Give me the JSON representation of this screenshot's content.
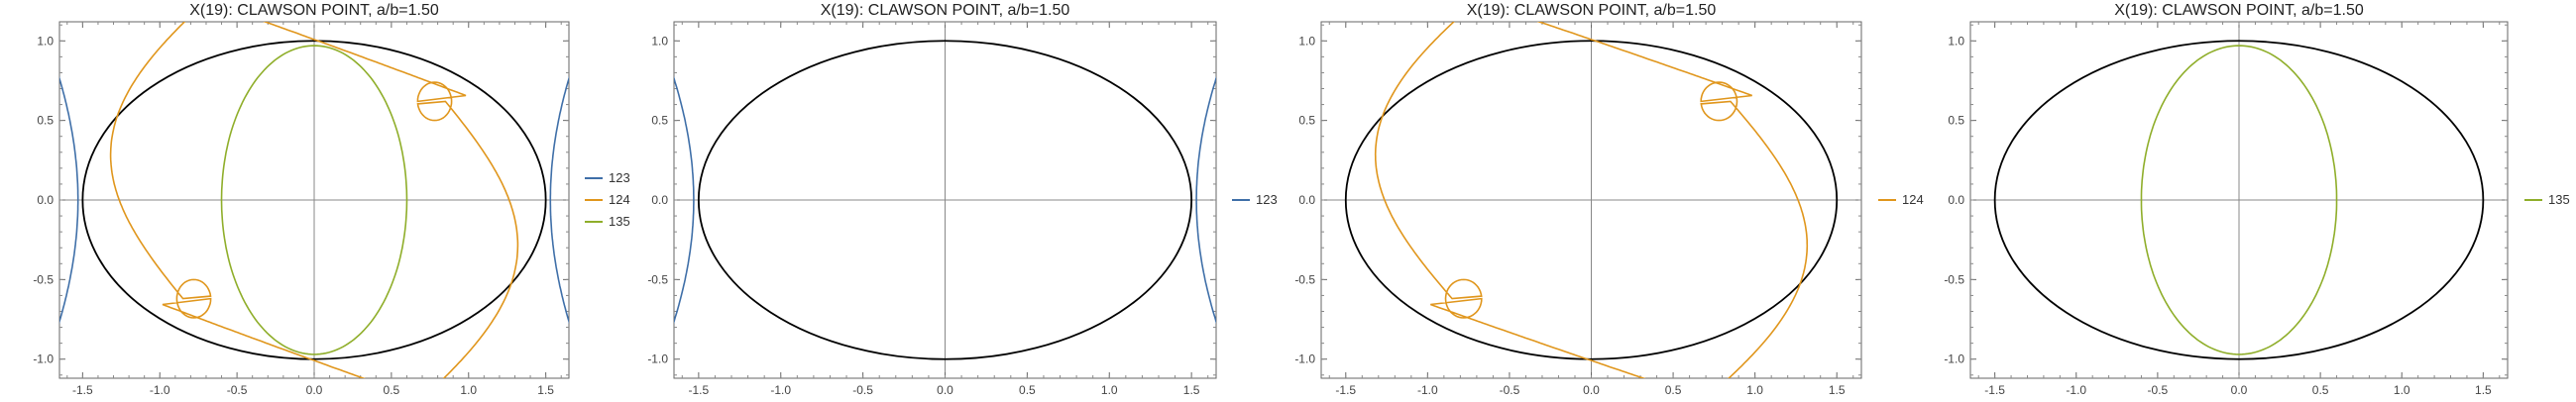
{
  "chart_data": [
    {
      "type": "line",
      "title": "X(19): CLAWSON POINT, a/b=1.50",
      "xlim": [
        -1.65,
        1.65
      ],
      "ylim": [
        -1.12,
        1.12
      ],
      "xticks": [
        -1.5,
        -1.0,
        -0.5,
        0.0,
        0.5,
        1.0,
        1.5
      ],
      "xtick_labels": [
        "-1.5",
        "-1.0",
        "-0.5",
        "0.0",
        "0.5",
        "1.0",
        "1.5"
      ],
      "yticks": [
        -1.0,
        -0.5,
        0.0,
        0.5,
        1.0
      ],
      "ytick_labels": [
        "-1.0",
        "-0.5",
        "0.0",
        "0.5",
        "1.0"
      ],
      "ellipse": {
        "a": 1.5,
        "b": 1.0,
        "color": "#000000"
      },
      "legend_position": "right",
      "series": [
        {
          "name": "123",
          "color": "#3f6fa8"
        },
        {
          "name": "124",
          "color": "#e0961c"
        },
        {
          "name": "135",
          "color": "#8fae2a"
        }
      ]
    },
    {
      "type": "line",
      "title": "X(19): CLAWSON POINT, a/b=1.50",
      "xlim": [
        -1.65,
        1.65
      ],
      "ylim": [
        -1.12,
        1.12
      ],
      "xticks": [
        -1.5,
        -1.0,
        -0.5,
        0.0,
        0.5,
        1.0,
        1.5
      ],
      "xtick_labels": [
        "-1.5",
        "-1.0",
        "-0.5",
        "0.0",
        "0.5",
        "1.0",
        "1.5"
      ],
      "yticks": [
        -1.0,
        -0.5,
        0.0,
        0.5,
        1.0
      ],
      "ytick_labels": [
        "-1.0",
        "-0.5",
        "0.0",
        "0.5",
        "1.0"
      ],
      "ellipse": {
        "a": 1.5,
        "b": 1.0,
        "color": "#000000"
      },
      "legend_position": "right",
      "series": [
        {
          "name": "123",
          "color": "#3f6fa8"
        }
      ]
    },
    {
      "type": "line",
      "title": "X(19): CLAWSON POINT, a/b=1.50",
      "xlim": [
        -1.65,
        1.65
      ],
      "ylim": [
        -1.12,
        1.12
      ],
      "xticks": [
        -1.5,
        -1.0,
        -0.5,
        0.0,
        0.5,
        1.0,
        1.5
      ],
      "xtick_labels": [
        "-1.5",
        "-1.0",
        "-0.5",
        "0.0",
        "0.5",
        "1.0",
        "1.5"
      ],
      "yticks": [
        -1.0,
        -0.5,
        0.0,
        0.5,
        1.0
      ],
      "ytick_labels": [
        "-1.0",
        "-0.5",
        "0.0",
        "0.5",
        "1.0"
      ],
      "ellipse": {
        "a": 1.5,
        "b": 1.0,
        "color": "#000000"
      },
      "legend_position": "right",
      "series": [
        {
          "name": "124",
          "color": "#e0961c"
        }
      ]
    },
    {
      "type": "line",
      "title": "X(19): CLAWSON POINT, a/b=1.50",
      "xlim": [
        -1.65,
        1.65
      ],
      "ylim": [
        -1.12,
        1.12
      ],
      "xticks": [
        -1.5,
        -1.0,
        -0.5,
        0.0,
        0.5,
        1.0,
        1.5
      ],
      "xtick_labels": [
        "-1.5",
        "-1.0",
        "-0.5",
        "0.0",
        "0.5",
        "1.0",
        "1.5"
      ],
      "yticks": [
        -1.0,
        -0.5,
        0.0,
        0.5,
        1.0
      ],
      "ytick_labels": [
        "-1.0",
        "-0.5",
        "0.0",
        "0.5",
        "1.0"
      ],
      "ellipse": {
        "a": 1.5,
        "b": 1.0,
        "color": "#000000"
      },
      "legend_position": "right",
      "series": [
        {
          "name": "135",
          "color": "#8fae2a"
        }
      ]
    }
  ]
}
